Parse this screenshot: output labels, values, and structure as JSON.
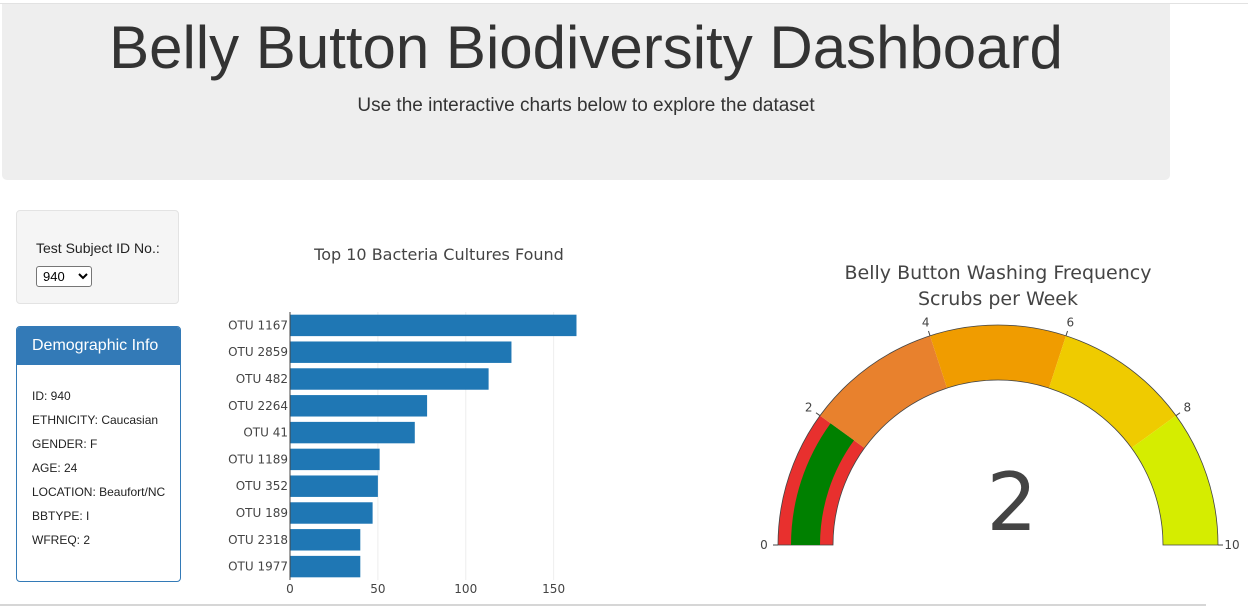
{
  "header": {
    "title": "Belly Button Biodiversity Dashboard",
    "subtitle": "Use the interactive charts below to explore the dataset"
  },
  "selector": {
    "label": "Test Subject ID No.:",
    "selected": "940"
  },
  "demographics": {
    "heading": "Demographic Info",
    "rows": [
      "ID: 940",
      "ETHNICITY: Caucasian",
      "GENDER: F",
      "AGE: 24",
      "LOCATION: Beaufort/NC",
      "BBTYPE: I",
      "WFREQ: 2"
    ]
  },
  "chart_data": [
    {
      "type": "bar",
      "orientation": "horizontal",
      "title": "Top 10 Bacteria Cultures Found",
      "categories": [
        "OTU 1167",
        "OTU 2859",
        "OTU 482",
        "OTU 2264",
        "OTU 41",
        "OTU 1189",
        "OTU 352",
        "OTU 189",
        "OTU 2318",
        "OTU 1977"
      ],
      "values": [
        163,
        126,
        113,
        78,
        71,
        51,
        50,
        47,
        40,
        40
      ],
      "xlim": [
        0,
        165
      ],
      "xticks": [
        0,
        50,
        100,
        150
      ],
      "grid": true,
      "color": "#1f77b4"
    },
    {
      "type": "gauge",
      "title": "Belly Button Washing Frequency",
      "subtitle": "Scrubs per Week",
      "value": 2,
      "range": [
        0,
        10
      ],
      "ticks": [
        0,
        2,
        4,
        6,
        8,
        10
      ],
      "steps": [
        {
          "range": [
            0,
            2
          ],
          "color": "#e8302e"
        },
        {
          "range": [
            2,
            4
          ],
          "color": "#e8812d"
        },
        {
          "range": [
            4,
            6
          ],
          "color": "#f09c00"
        },
        {
          "range": [
            6,
            8
          ],
          "color": "#efcb00"
        },
        {
          "range": [
            8,
            10
          ],
          "color": "#d5ed00"
        }
      ],
      "bar_color": "#008000"
    }
  ]
}
